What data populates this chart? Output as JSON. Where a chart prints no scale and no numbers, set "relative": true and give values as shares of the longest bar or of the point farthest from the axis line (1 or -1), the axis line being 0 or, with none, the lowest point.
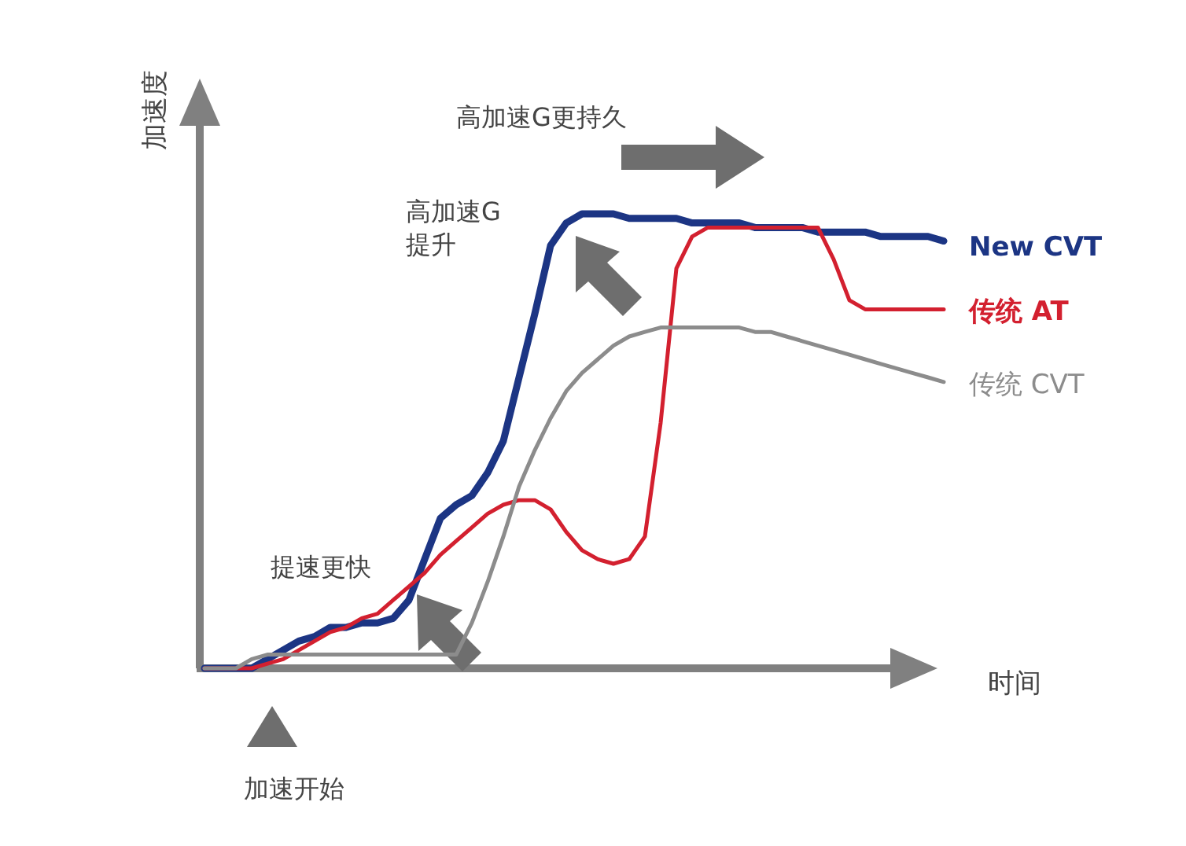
{
  "chart_data": {
    "type": "line",
    "relative": true,
    "xlabel": "时间",
    "ylabel": "加速度",
    "categories": [
      null,
      null,
      null,
      null,
      null,
      null,
      null,
      null,
      null,
      null,
      null,
      null,
      null,
      null,
      null,
      null,
      null,
      null,
      null,
      null,
      null,
      null,
      null,
      null,
      null,
      null,
      null,
      null,
      null,
      null,
      null,
      null,
      null,
      null,
      null,
      null,
      null,
      null,
      null,
      null,
      null,
      null,
      null,
      null,
      null,
      null,
      null,
      null
    ],
    "series": [
      {
        "name": "New CVT",
        "color": "#1c3584",
        "values": [
          0,
          0,
          0,
          0,
          0.02,
          0.04,
          0.06,
          0.07,
          0.09,
          0.09,
          0.1,
          0.1,
          0.11,
          0.15,
          0.24,
          0.33,
          0.36,
          0.38,
          0.43,
          0.5,
          0.64,
          0.78,
          0.93,
          0.98,
          1,
          1,
          1,
          0.99,
          0.99,
          0.99,
          0.99,
          0.98,
          0.98,
          0.98,
          0.98,
          0.97,
          0.97,
          0.97,
          0.97,
          0.96,
          0.96,
          0.96,
          0.96,
          0.95,
          0.95,
          0.95,
          0.95,
          0.94
        ]
      },
      {
        "name": "传统 AT",
        "color": "#d3202f",
        "values": [
          0,
          0,
          0,
          0,
          0.01,
          0.02,
          0.04,
          0.06,
          0.08,
          0.09,
          0.11,
          0.12,
          0.15,
          0.18,
          0.21,
          0.25,
          0.28,
          0.31,
          0.34,
          0.36,
          0.37,
          0.37,
          0.35,
          0.3,
          0.26,
          0.24,
          0.23,
          0.24,
          0.29,
          0.54,
          0.88,
          0.95,
          0.97,
          0.97,
          0.97,
          0.97,
          0.97,
          0.97,
          0.97,
          0.97,
          0.9,
          0.81,
          0.79,
          0.79,
          0.79,
          0.79,
          0.79,
          0.79
        ]
      },
      {
        "name": "传统 CVT",
        "color": "#8c8c8c",
        "values": [
          0,
          0,
          0,
          0.02,
          0.03,
          0.03,
          0.03,
          0.03,
          0.03,
          0.03,
          0.03,
          0.03,
          0.03,
          0.03,
          0.03,
          0.03,
          0.03,
          0.1,
          0.19,
          0.29,
          0.4,
          0.48,
          0.55,
          0.61,
          0.65,
          0.68,
          0.71,
          0.73,
          0.74,
          0.75,
          0.75,
          0.75,
          0.75,
          0.75,
          0.75,
          0.74,
          0.74,
          0.73,
          0.72,
          0.71,
          0.7,
          0.69,
          0.68,
          0.67,
          0.66,
          0.65,
          0.64,
          0.63
        ]
      }
    ],
    "annotations": [
      "高加速G更持久",
      "高加速G\n提升",
      "提速更快",
      "加速开始"
    ]
  }
}
